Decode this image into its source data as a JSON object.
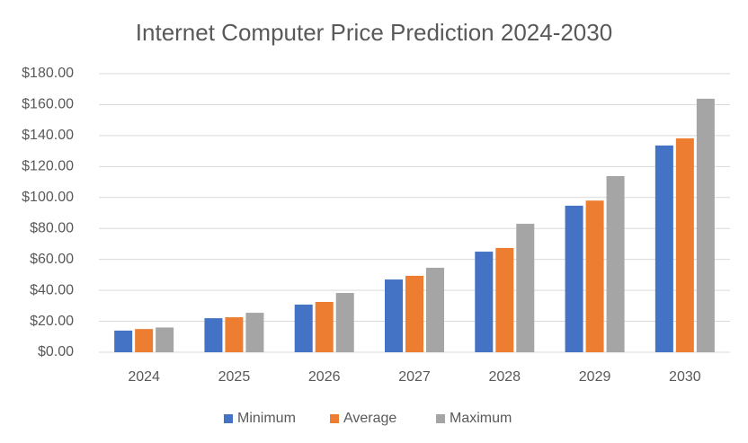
{
  "chart_data": {
    "type": "bar",
    "title": "Internet Computer Price Prediction 2024-2030",
    "categories": [
      "2024",
      "2025",
      "2026",
      "2027",
      "2028",
      "2029",
      "2030"
    ],
    "series": [
      {
        "name": "Minimum",
        "color": "#4472c4",
        "values": [
          14,
          22,
          30.8,
          47,
          65,
          94.7,
          133.6
        ]
      },
      {
        "name": "Average",
        "color": "#ed7d31",
        "values": [
          15,
          22.6,
          32.5,
          49.4,
          67.4,
          98,
          138.2
        ]
      },
      {
        "name": "Maximum",
        "color": "#a5a5a5",
        "values": [
          16,
          25.5,
          38.3,
          54.6,
          83,
          113.8,
          163.8
        ]
      }
    ],
    "ylim": [
      0,
      180
    ],
    "yticks": [
      {
        "value": 0,
        "label": "$0.00"
      },
      {
        "value": 20,
        "label": "$20.00"
      },
      {
        "value": 40,
        "label": "$40.00"
      },
      {
        "value": 60,
        "label": "$60.00"
      },
      {
        "value": 80,
        "label": "$80.00"
      },
      {
        "value": 100,
        "label": "$100.00"
      },
      {
        "value": 120,
        "label": "$120.00"
      },
      {
        "value": 140,
        "label": "$140.00"
      },
      {
        "value": 160,
        "label": "$160.00"
      },
      {
        "value": 180,
        "label": "$180.00"
      }
    ],
    "grid": true,
    "legend": "bottom"
  }
}
